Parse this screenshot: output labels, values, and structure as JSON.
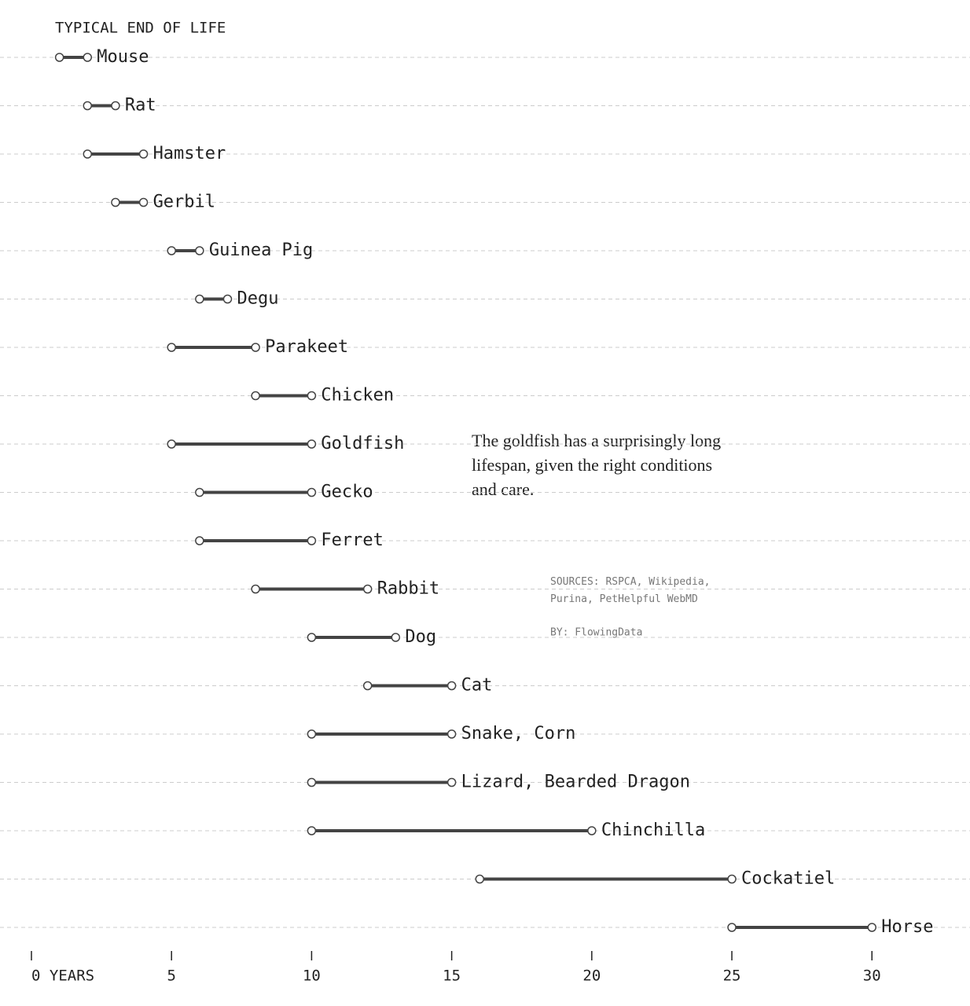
{
  "chart_data": {
    "type": "dumbbell",
    "title": "TYPICAL END OF LIFE",
    "annotation": "The goldfish has a surprisingly long lifespan, given the right conditions and care.",
    "sources": "SOURCES: RSPCA, Wikipedia, Purina, PetHelpful WebMD",
    "byline": "BY: FlowingData",
    "categories": [
      "Mouse",
      "Rat",
      "Hamster",
      "Gerbil",
      "Guinea Pig",
      "Degu",
      "Parakeet",
      "Chicken",
      "Goldfish",
      "Gecko",
      "Ferret",
      "Rabbit",
      "Dog",
      "Cat",
      "Snake, Corn",
      "Lizard, Bearded Dragon",
      "Chinchilla",
      "Cockatiel",
      "Horse"
    ],
    "low": [
      1,
      2,
      2,
      3,
      5,
      6,
      5,
      8,
      5,
      6,
      6,
      8,
      10,
      12,
      10,
      10,
      10,
      16,
      25
    ],
    "high": [
      2,
      3,
      4,
      4,
      6,
      7,
      8,
      10,
      10,
      10,
      10,
      12,
      13,
      15,
      15,
      15,
      20,
      25,
      30
    ],
    "color": "#444444",
    "xlim": [
      0,
      33.5
    ],
    "xticks": [
      {
        "value": 0,
        "label": "0 YEARS"
      },
      5,
      10,
      15,
      20,
      25,
      30
    ],
    "grid": true
  }
}
